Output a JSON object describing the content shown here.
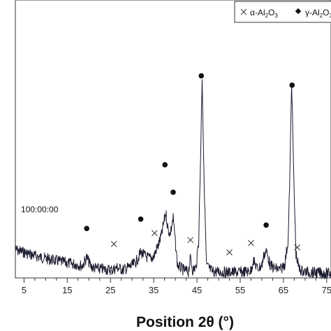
{
  "chart_data": {
    "type": "line",
    "title": "",
    "xlabel": "Position 2θ (°)",
    "ylabel": "",
    "xlim": [
      3,
      76
    ],
    "ylim": [
      0,
      1000
    ],
    "x_ticks": [
      5,
      15,
      25,
      35,
      45,
      55,
      65,
      75
    ],
    "x_tick_labels": [
      "5",
      "15",
      "25",
      "35",
      "45",
      "55",
      "65",
      "75"
    ],
    "annotation": "100:00:00",
    "legend": {
      "position": "top-right",
      "entries": [
        {
          "marker": "cross",
          "label": "α-Al2O3",
          "label_main": "α-Al",
          "sub1": "2",
          "mid": "O",
          "sub2": "3"
        },
        {
          "marker": "diamond",
          "label": "γ-Al2O3",
          "label_main": "γ-Al",
          "sub1": "2",
          "mid": "O",
          "sub2": "3"
        }
      ]
    },
    "series": [
      {
        "name": "",
        "color": "#1a1a2e",
        "x": [
          3.0,
          5,
          7,
          9,
          11,
          13,
          15,
          17,
          18.5,
          19.5,
          20.5,
          22,
          24,
          25.5,
          26.5,
          28,
          30,
          31,
          32,
          33,
          34,
          35,
          35.5,
          36,
          36.8,
          37.4,
          37.8,
          38.3,
          38.8,
          39.5,
          40.5,
          42,
          43,
          43.5,
          44,
          44.8,
          45.4,
          45.8,
          46.2,
          46.6,
          47.2,
          48.5,
          50,
          52,
          54,
          56,
          57.5,
          58,
          59,
          60,
          60.5,
          61,
          61.5,
          62,
          63,
          64,
          64.5,
          65.3,
          66.1,
          66.5,
          66.9,
          67.4,
          67.9,
          68.6,
          69.5,
          71,
          73,
          75,
          76
        ],
        "y": [
          130,
          118,
          104,
          92,
          82,
          74,
          64,
          58,
          50,
          93,
          46,
          36,
          32,
          30,
          42,
          30,
          52,
          72,
          118,
          100,
          88,
          95,
          128,
          150,
          205,
          275,
          318,
          235,
          210,
          290,
          52,
          28,
          20,
          88,
          30,
          42,
          180,
          560,
          1000,
          520,
          52,
          22,
          20,
          18,
          18,
          20,
          25,
          78,
          35,
          52,
          105,
          125,
          90,
          50,
          38,
          32,
          35,
          60,
          180,
          520,
          985,
          480,
          110,
          35,
          22,
          18,
          15,
          12,
          12
        ]
      }
    ],
    "markers": {
      "alpha": [
        {
          "x": 25.8,
          "y": 160
        },
        {
          "x": 35.2,
          "y": 215
        },
        {
          "x": 43.5,
          "y": 180
        },
        {
          "x": 52.5,
          "y": 118
        },
        {
          "x": 57.5,
          "y": 165
        },
        {
          "x": 68.2,
          "y": 143
        }
      ],
      "gamma": [
        {
          "x": 19.5,
          "y": 238
        },
        {
          "x": 32.0,
          "y": 285
        },
        {
          "x": 37.6,
          "y": 558
        },
        {
          "x": 39.5,
          "y": 420
        },
        {
          "x": 46.0,
          "y": 1005
        },
        {
          "x": 61.0,
          "y": 255
        },
        {
          "x": 67.0,
          "y": 958
        }
      ]
    }
  }
}
